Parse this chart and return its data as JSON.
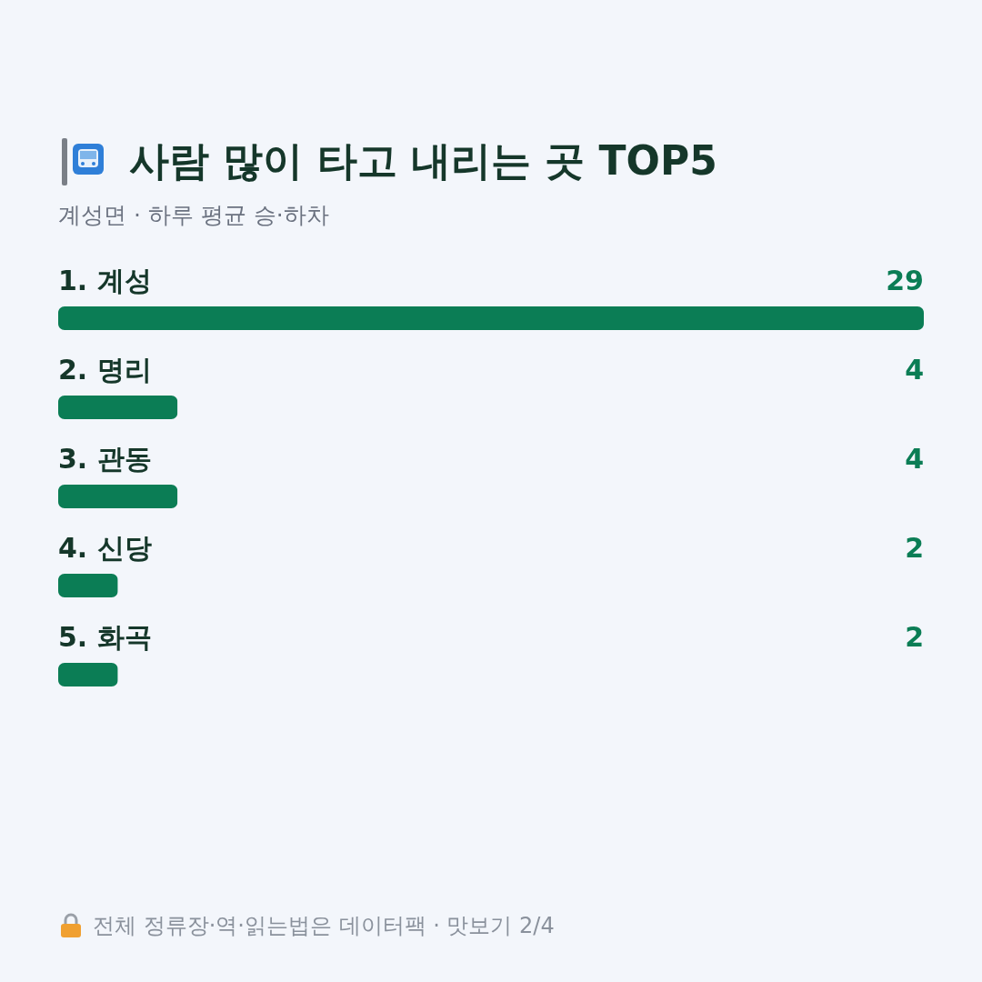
{
  "chart_data": {
    "type": "bar",
    "orientation": "horizontal",
    "title": "사람 많이 타고 내리는 곳 TOP5",
    "subtitle": "계성면 · 하루 평균 승·하차",
    "categories": [
      "1. 계성",
      "2. 명리",
      "3. 관동",
      "4. 신당",
      "5. 화곡"
    ],
    "values": [
      29,
      4,
      4,
      2,
      2
    ],
    "color": "#0b7d55",
    "data_labels": true,
    "annotations": [
      "전체 정류장·역·읽는법은 데이터팩 · 맛보기 2/4"
    ]
  }
}
